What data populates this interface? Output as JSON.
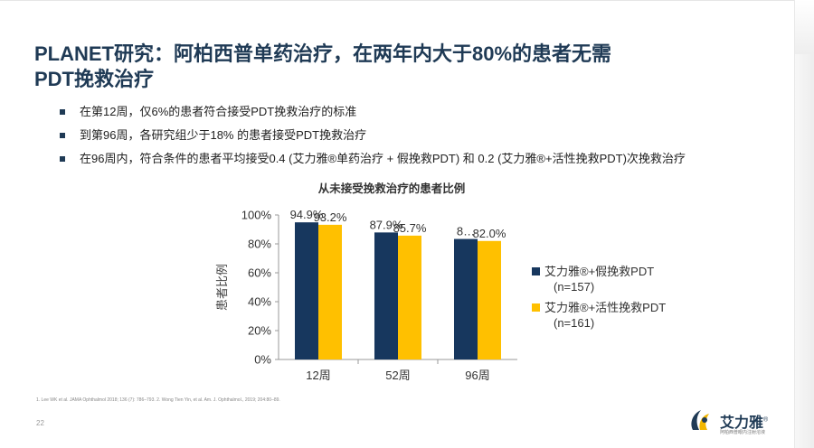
{
  "slide": {
    "title_lines": [
      "PLANET研究：阿柏西普单药治疗，在两年内大于80%的患者无需",
      "PDT挽救治疗"
    ],
    "bullets": [
      "在第12周，仅6%的患者符合接受PDT挽救治疗的标准",
      "到第96周，各研究组少于18% 的患者接受PDT挽救治疗",
      "在96周内，符合条件的患者平均接受0.4 (艾力雅®单药治疗 + 假挽救PDT) 和 0.2 (艾力雅®+活性挽救PDT)次挽救治疗"
    ],
    "footnote": "1. Lee WK et al. JAMA Ophthalmol 2018; 136 (7): 786–793. 2. Wong Tien Yin, et al. Am. J. Ophthalmol., 2019; 204:80–89.",
    "page_number": "22",
    "logo": {
      "name": "艾力雅",
      "reg": "®",
      "tagline": "阿柏西普眼内注射溶液"
    }
  },
  "chart_data": {
    "type": "bar",
    "title": "从未接受挽救治疗的患者比例",
    "ylabel": "患者比例",
    "xlabel": "",
    "categories": [
      "12周",
      "52周",
      "96周"
    ],
    "ylim": [
      0,
      100
    ],
    "yticks": [
      "0%",
      "20%",
      "40%",
      "60%",
      "80%",
      "100%"
    ],
    "series": [
      {
        "name": "艾力雅®+假挽救PDT",
        "n": "(n=157)",
        "values": [
          94.9,
          87.9,
          83.4
        ],
        "labels": [
          "94.9%",
          "87.9%",
          "8…"
        ],
        "color": "#17375e"
      },
      {
        "name": "艾力雅®+活性挽救PDT",
        "n": "(n=161)",
        "values": [
          93.2,
          85.7,
          82.0
        ],
        "labels": [
          "93.2%",
          "85.7%",
          "82.0%"
        ],
        "color": "#ffc000"
      }
    ],
    "legend_position": "right"
  }
}
